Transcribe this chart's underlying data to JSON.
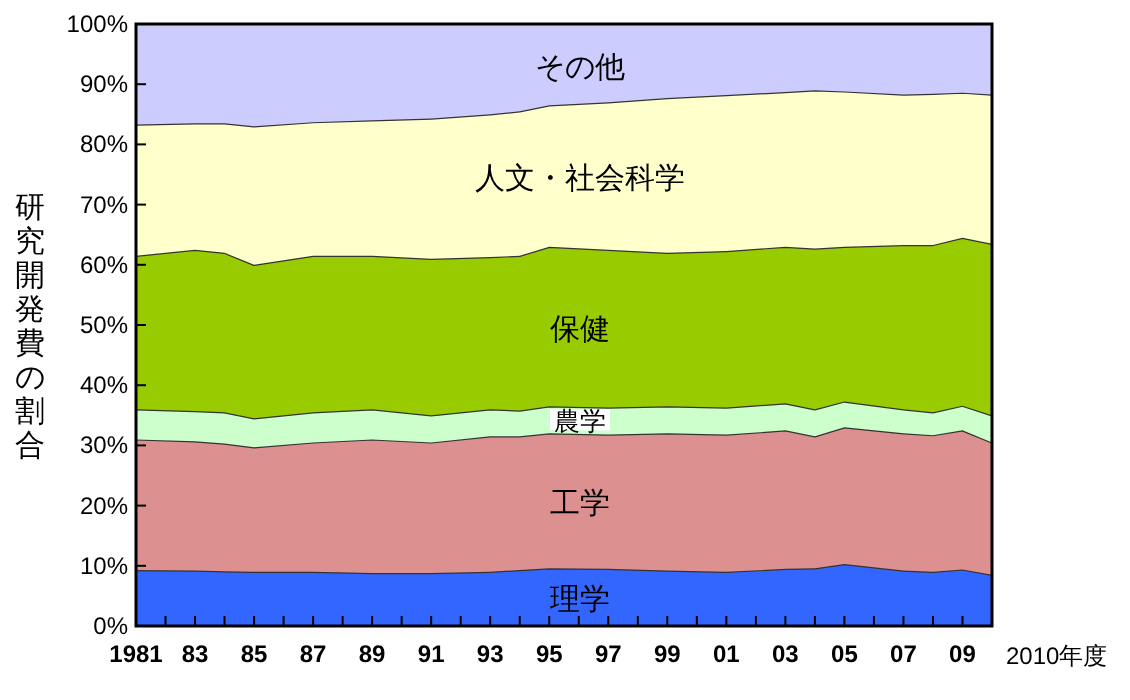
{
  "chart_data": {
    "type": "area",
    "stacked": true,
    "xlabel": "2010年度",
    "ylabel": "研究開発費の割合",
    "x": [
      1981,
      1983,
      1984,
      1985,
      1987,
      1989,
      1991,
      1993,
      1994,
      1995,
      1997,
      1999,
      2001,
      2003,
      2004,
      2005,
      2007,
      2008,
      2009,
      2010
    ],
    "series": [
      {
        "name": "理学",
        "color": "#3366ff",
        "values": [
          9.3,
          9.2,
          9.1,
          9.0,
          9.0,
          8.8,
          8.8,
          9.0,
          9.3,
          9.6,
          9.5,
          9.2,
          9.0,
          9.5,
          9.6,
          10.3,
          9.2,
          9.0,
          9.4,
          8.5
        ]
      },
      {
        "name": "工学",
        "color": "#dd9090",
        "values": [
          21.7,
          21.5,
          21.2,
          20.7,
          21.5,
          22.2,
          21.7,
          22.5,
          22.2,
          22.4,
          22.3,
          22.8,
          22.8,
          23.0,
          21.9,
          22.7,
          22.8,
          22.7,
          23.1,
          22.0
        ]
      },
      {
        "name": "農学",
        "color": "#ccffcc",
        "values": [
          5.0,
          5.0,
          5.2,
          4.8,
          5.0,
          5.0,
          4.5,
          4.5,
          4.3,
          4.5,
          4.5,
          4.5,
          4.5,
          4.5,
          4.5,
          4.3,
          4.0,
          3.8,
          4.1,
          4.5
        ]
      },
      {
        "name": "保健",
        "color": "#99cc00",
        "values": [
          25.5,
          26.8,
          26.5,
          25.5,
          26.0,
          25.5,
          26.0,
          25.3,
          25.7,
          26.5,
          26.2,
          25.5,
          26.0,
          26.0,
          26.7,
          25.7,
          27.3,
          27.8,
          27.9,
          28.5
        ]
      },
      {
        "name": "人文・社会科学",
        "color": "#ffffcc",
        "values": [
          21.8,
          21.0,
          21.5,
          23.0,
          22.2,
          22.5,
          23.3,
          23.7,
          24.0,
          23.5,
          24.5,
          25.7,
          25.9,
          25.7,
          26.3,
          25.8,
          25.0,
          25.1,
          24.1,
          24.8
        ]
      },
      {
        "name": "その他",
        "color": "#ccccff",
        "values": [
          16.7,
          16.5,
          16.5,
          17.0,
          16.3,
          16.0,
          15.7,
          15.0,
          14.5,
          13.5,
          13.0,
          12.3,
          11.8,
          11.3,
          11.0,
          11.2,
          11.7,
          11.6,
          11.4,
          11.7
        ]
      }
    ],
    "xlim": [
      1981,
      2010
    ],
    "xticks": [
      {
        "value": 1981,
        "label": "1981"
      },
      {
        "value": 1982,
        "label": null
      },
      {
        "value": 1983,
        "label": "83"
      },
      {
        "value": 1984,
        "label": null
      },
      {
        "value": 1985,
        "label": "85"
      },
      {
        "value": 1986,
        "label": null
      },
      {
        "value": 1987,
        "label": "87"
      },
      {
        "value": 1988,
        "label": null
      },
      {
        "value": 1989,
        "label": "89"
      },
      {
        "value": 1990,
        "label": null
      },
      {
        "value": 1991,
        "label": "91"
      },
      {
        "value": 1992,
        "label": null
      },
      {
        "value": 1993,
        "label": "93"
      },
      {
        "value": 1994,
        "label": null
      },
      {
        "value": 1995,
        "label": "95"
      },
      {
        "value": 1996,
        "label": null
      },
      {
        "value": 1997,
        "label": "97"
      },
      {
        "value": 1998,
        "label": null
      },
      {
        "value": 1999,
        "label": "99"
      },
      {
        "value": 2000,
        "label": null
      },
      {
        "value": 2001,
        "label": "01"
      },
      {
        "value": 2002,
        "label": null
      },
      {
        "value": 2003,
        "label": "03"
      },
      {
        "value": 2004,
        "label": null
      },
      {
        "value": 2005,
        "label": "05"
      },
      {
        "value": 2006,
        "label": null
      },
      {
        "value": 2007,
        "label": "07"
      },
      {
        "value": 2008,
        "label": null
      },
      {
        "value": 2009,
        "label": "09"
      },
      {
        "value": 2010,
        "label": null
      }
    ],
    "ylim": [
      0,
      100
    ],
    "yticks": [
      {
        "value": 0,
        "label": "0%"
      },
      {
        "value": 10,
        "label": "10%"
      },
      {
        "value": 20,
        "label": "20%"
      },
      {
        "value": 30,
        "label": "30%"
      },
      {
        "value": 40,
        "label": "40%"
      },
      {
        "value": 50,
        "label": "50%"
      },
      {
        "value": 60,
        "label": "60%"
      },
      {
        "value": 70,
        "label": "70%"
      },
      {
        "value": 80,
        "label": "80%"
      },
      {
        "value": 90,
        "label": "90%"
      },
      {
        "value": 100,
        "label": "100%"
      }
    ],
    "grid": false
  }
}
